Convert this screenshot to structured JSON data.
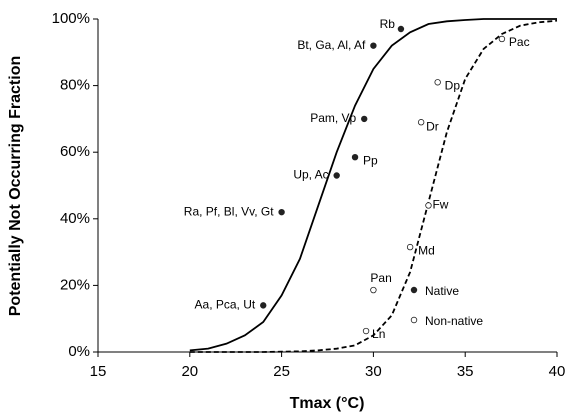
{
  "chart_data": {
    "type": "scatter",
    "x_label": "Tmax (°C)",
    "y_label": "Potentially Not Occurring Fraction",
    "xlim": [
      15,
      40
    ],
    "xticks": [
      15,
      20,
      25,
      30,
      35,
      40
    ],
    "ylim": [
      0,
      100
    ],
    "yticks": [
      {
        "value": 0,
        "label": "0%"
      },
      {
        "value": 20,
        "label": "20%"
      },
      {
        "value": 40,
        "label": "40%"
      },
      {
        "value": 60,
        "label": "60%"
      },
      {
        "value": 80,
        "label": "80%"
      },
      {
        "value": 100,
        "label": "100%"
      }
    ],
    "legend": "lower right",
    "series": [
      {
        "name": "Native",
        "color": "#222222",
        "filled": true,
        "labels": [
          "Aa, Pca, Ut",
          "Ra, Pf, Bl, Vv, Gt",
          "Up, Ac",
          "Pp",
          "Pam, Vp",
          "Bt, Ga, Al, Af",
          "Rb"
        ],
        "x": [
          24,
          25,
          28,
          29,
          29.5,
          30,
          31.5
        ],
        "values": [
          14,
          42,
          53,
          58.5,
          70,
          92,
          97
        ]
      },
      {
        "name": "Non-native",
        "color": "#222222",
        "filled": false,
        "labels": [
          "Ln",
          "Pan",
          "Md",
          "Fw",
          "Dr",
          "Dp",
          "Pac"
        ],
        "x": [
          29.6,
          30,
          32,
          33,
          32.6,
          33.5,
          37
        ],
        "values": [
          6.3,
          18.6,
          31.5,
          44,
          69,
          81,
          94
        ]
      }
    ],
    "lines": [
      {
        "dashed": false,
        "color": "#000000",
        "x": [
          20,
          21,
          22,
          23,
          24,
          25,
          26,
          27,
          28,
          29,
          30,
          31,
          32,
          33,
          34,
          35,
          36,
          37,
          38,
          39,
          40
        ],
        "values": [
          0.5,
          1,
          2.5,
          5,
          9,
          17,
          28,
          44,
          60,
          74,
          85,
          92,
          96,
          98.5,
          99.3,
          99.7,
          100,
          100,
          100,
          100,
          100
        ]
      },
      {
        "dashed": true,
        "color": "#000000",
        "x": [
          20,
          21,
          22,
          23,
          24,
          25,
          26,
          27,
          28,
          29,
          30,
          31,
          32,
          33,
          34,
          35,
          36,
          37,
          38,
          39,
          40
        ],
        "values": [
          0,
          0,
          0,
          0,
          0,
          0.1,
          0.2,
          0.5,
          1,
          2,
          5,
          11,
          24,
          45,
          66,
          82,
          91,
          95.5,
          98,
          99,
          99.5
        ]
      }
    ]
  }
}
